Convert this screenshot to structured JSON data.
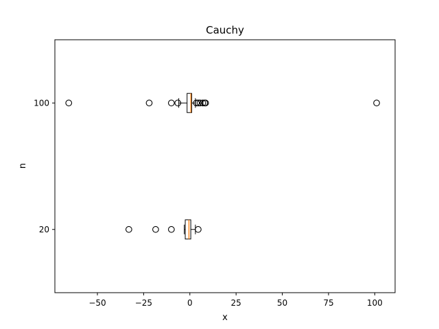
{
  "chart_data": {
    "type": "boxplot",
    "orientation": "horizontal",
    "title": "Cauchy",
    "xlabel": "x",
    "ylabel": "n",
    "xlim": [
      -73,
      111
    ],
    "x_ticks": [
      -50,
      -25,
      0,
      25,
      50,
      75,
      100
    ],
    "x_tick_labels": [
      "−50",
      "−25",
      "0",
      "25",
      "50",
      "75",
      "100"
    ],
    "categories": [
      "20",
      "100"
    ],
    "box_color": "#000000",
    "median_color": "#ff7f0e",
    "grid": false,
    "legend": false,
    "boxes": [
      {
        "category": "20",
        "whisker_low": -3,
        "q1": -2.5,
        "median": -0.5,
        "q3": 0.5,
        "whisker_high": 3,
        "fliers": [
          -33,
          -18.5,
          -10,
          4.5
        ]
      },
      {
        "category": "100",
        "whisker_low": -6,
        "q1": -1.5,
        "median": 0.5,
        "q3": 1,
        "whisker_high": 3,
        "fliers": [
          -65.5,
          -22,
          -10,
          -6.5,
          3.5,
          4.5,
          5.5,
          7,
          8,
          8.5,
          101
        ]
      }
    ]
  }
}
